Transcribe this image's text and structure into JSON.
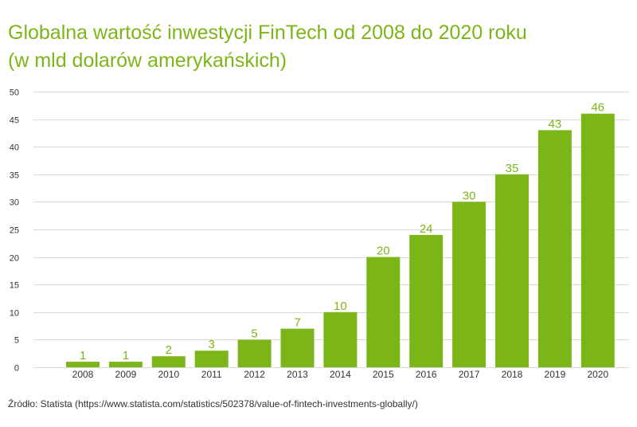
{
  "title_line1": "Globalna wartość inwestycji FinTech od 2008 do 2020 roku",
  "title_line2": "(w mld dolarów amerykańskich)",
  "source": "Źródło: Statista (https://www.statista.com/statistics/502378/value-of-fintech-investments-globally/)",
  "colors": {
    "bar": "#7cb518",
    "title": "#7cb518",
    "grid": "#d9d9d9",
    "axis_text": "#333333"
  },
  "chart_data": {
    "type": "bar",
    "title": "Globalna wartość inwestycji FinTech od 2008 do 2020 roku (w mld dolarów amerykańskich)",
    "xlabel": "",
    "ylabel": "",
    "categories": [
      "2008",
      "2009",
      "2010",
      "2011",
      "2012",
      "2013",
      "2014",
      "2015",
      "2016",
      "2017",
      "2018",
      "2019",
      "2020"
    ],
    "values": [
      1,
      1,
      2,
      3,
      5,
      7,
      10,
      20,
      24,
      30,
      35,
      43,
      46
    ],
    "ylim": [
      0,
      50
    ],
    "yticks": [
      0,
      5,
      10,
      15,
      20,
      25,
      30,
      35,
      40,
      45,
      50
    ],
    "grid": true,
    "legend": "none",
    "data_labels": true
  }
}
